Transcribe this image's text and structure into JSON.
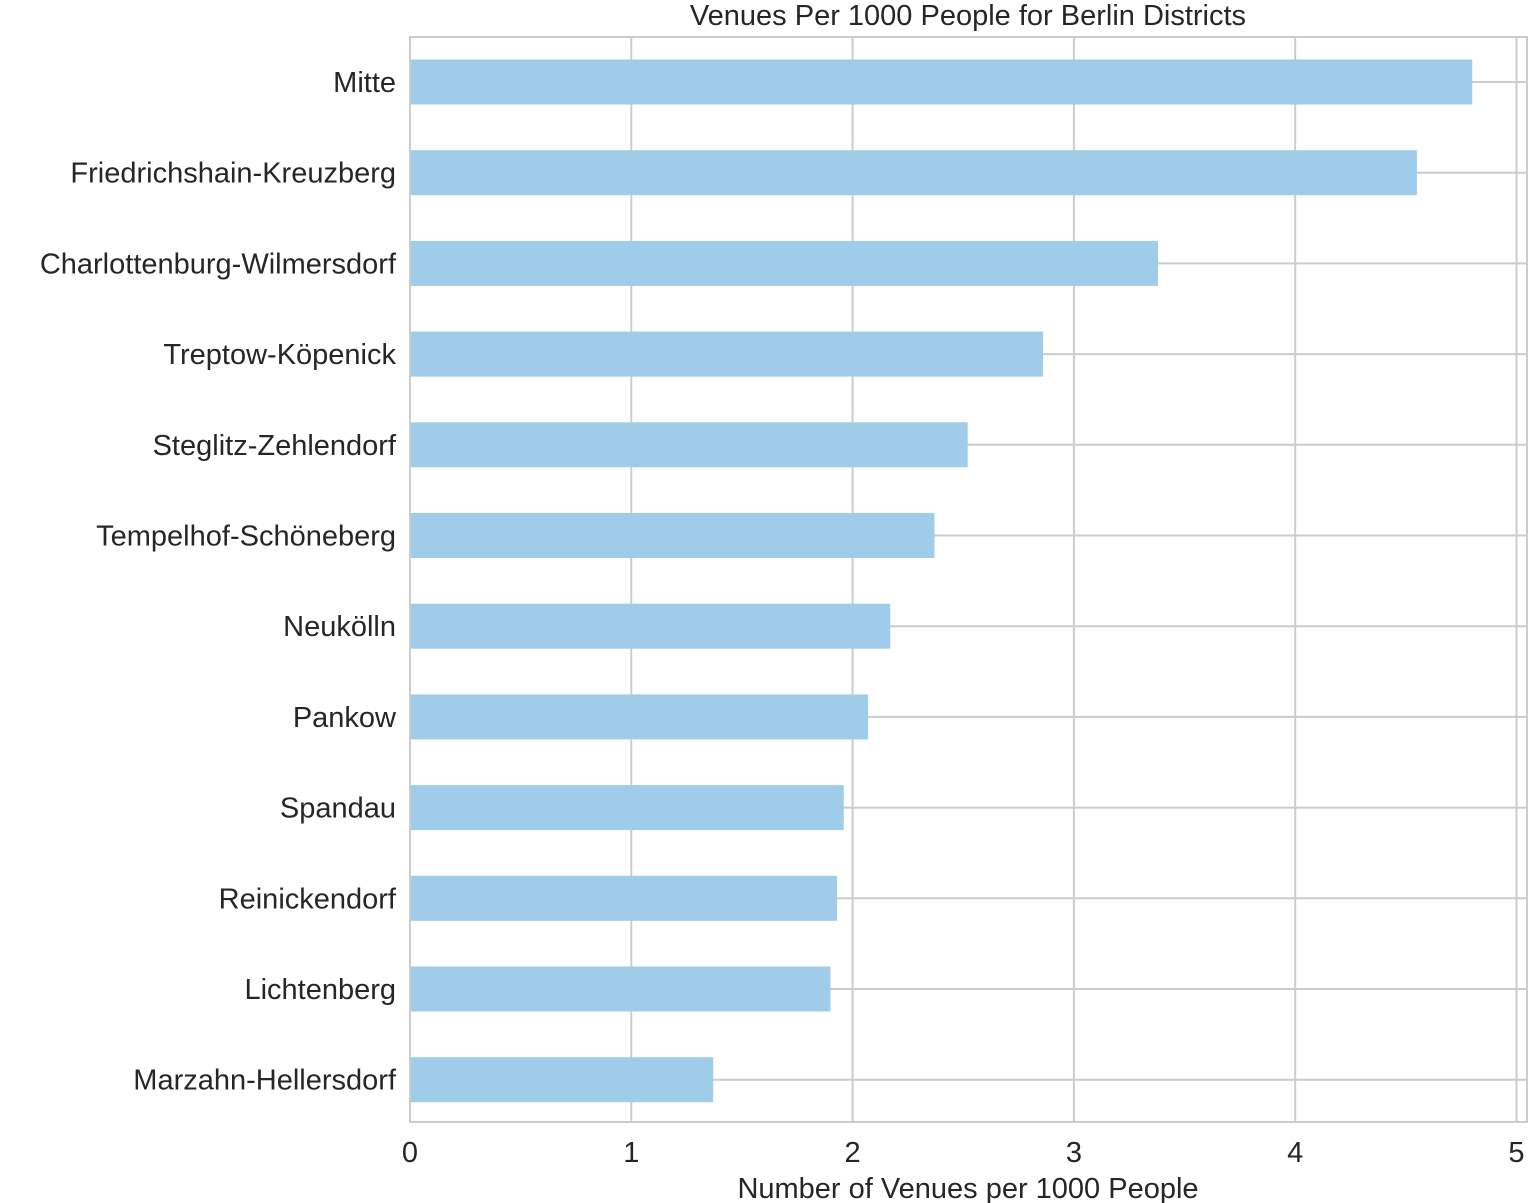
{
  "chart_data": {
    "type": "bar",
    "orientation": "horizontal",
    "title": "Venues Per 1000 People for Berlin Districts",
    "xlabel": "Number of Venues per 1000 People",
    "ylabel": "",
    "xlim": [
      0,
      5
    ],
    "xticks": [
      "0",
      "1",
      "2",
      "3",
      "4",
      "5"
    ],
    "grid": true,
    "bar_color": "#9fcce9",
    "grid_color": "#cccccc",
    "text_color": "#262626",
    "categories": [
      "Mitte",
      "Friedrichshain-Kreuzberg",
      "Charlottenburg-Wilmersdorf",
      "Treptow-Köpenick",
      "Steglitz-Zehlendorf",
      "Tempelhof-Schöneberg",
      "Neukölln",
      "Pankow",
      "Spandau",
      "Reinickendorf",
      "Lichtenberg",
      "Marzahn-Hellersdorf"
    ],
    "values": [
      4.8,
      4.55,
      3.38,
      2.86,
      2.52,
      2.37,
      2.17,
      2.07,
      1.96,
      1.93,
      1.9,
      1.37
    ]
  }
}
